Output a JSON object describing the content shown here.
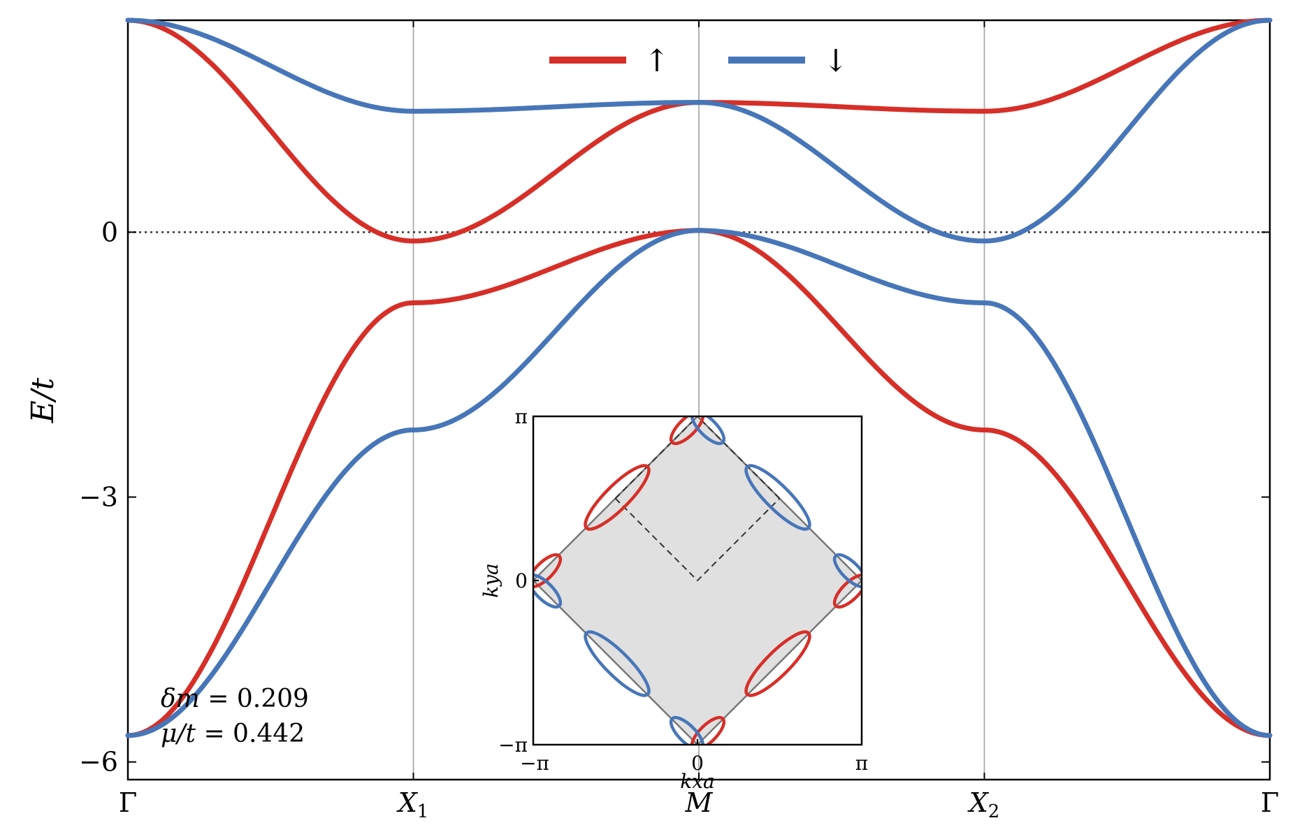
{
  "chart_data": {
    "type": "line",
    "title": "",
    "ylabel": "E/t",
    "xlabel": "",
    "x_ticks": [
      "Γ",
      "X1",
      "M",
      "X2",
      "Γ"
    ],
    "x_positions": [
      0,
      1,
      2,
      3,
      4
    ],
    "y_ticks": [
      "0",
      "−3",
      "−6"
    ],
    "y_tick_values": [
      0,
      -3,
      -6
    ],
    "ylim": [
      -6.2,
      2.4
    ],
    "xlim": [
      0,
      4
    ],
    "fermi_line": 0,
    "grid": false,
    "legend": {
      "placement": "top-center",
      "entries": [
        {
          "label": "↑",
          "color": "#d62f28"
        },
        {
          "label": "↓",
          "color": "#4776b8"
        }
      ]
    },
    "series": [
      {
        "key": "up_lower",
        "color": "#d62f28",
        "x": [
          0,
          1,
          2,
          3,
          4
        ],
        "y": [
          -5.7,
          -0.8,
          0.02,
          -2.24,
          -5.7
        ]
      },
      {
        "key": "up_upper",
        "color": "#d62f28",
        "x": [
          0,
          1,
          2,
          3,
          4
        ],
        "y": [
          2.4,
          -0.1,
          1.47,
          1.37,
          2.4
        ]
      },
      {
        "key": "down_lower",
        "color": "#4776b8",
        "x": [
          0,
          1,
          2,
          3,
          4
        ],
        "y": [
          -5.7,
          -2.24,
          0.02,
          -0.8,
          -5.7
        ]
      },
      {
        "key": "down_upper",
        "color": "#4776b8",
        "x": [
          0,
          1,
          2,
          3,
          4
        ],
        "y": [
          2.4,
          1.37,
          1.47,
          -0.1,
          2.4
        ]
      }
    ],
    "annotations": {
      "line1_lhs": "δm",
      "line1_rhs": " = 0.209",
      "line2_lhs": "μ/t",
      "line2_rhs": " = 0.442"
    },
    "inset": {
      "type": "fermi-surface",
      "xlabel": "kxa",
      "ylabel": "kya",
      "x_ticks": [
        "−π",
        "0",
        "π"
      ],
      "y_ticks": [
        "−π",
        "0",
        "π"
      ],
      "fill_color": "#e0e0e0"
    }
  }
}
